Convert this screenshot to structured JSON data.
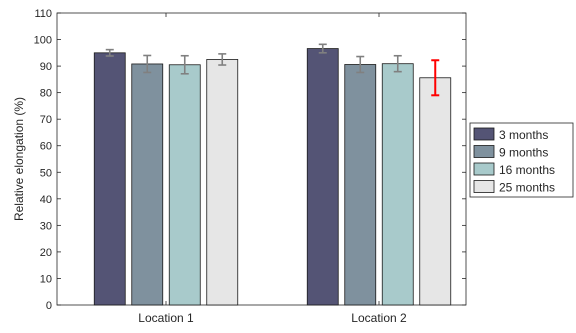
{
  "chart_data": {
    "type": "bar",
    "categories": [
      "Location 1",
      "Location 2"
    ],
    "ylabel": "Relative elongation (%)",
    "xlabel": "",
    "ylim": [
      0,
      110
    ],
    "yticks": [
      0,
      10,
      20,
      30,
      40,
      50,
      60,
      70,
      80,
      90,
      100,
      110
    ],
    "grid": false,
    "legend_position": "right",
    "series": [
      {
        "name": "3 months",
        "color": "#545475",
        "values": [
          95.0,
          96.6
        ],
        "errors": [
          1.2,
          1.6
        ]
      },
      {
        "name": "9 months",
        "color": "#7f919e",
        "values": [
          90.8,
          90.6
        ],
        "errors": [
          3.2,
          3.0
        ]
      },
      {
        "name": "16 months",
        "color": "#a8cacb",
        "values": [
          90.5,
          90.9
        ],
        "errors": [
          3.4,
          3.0
        ]
      },
      {
        "name": "25 months",
        "color": "#e6e6e6",
        "values": [
          92.5,
          85.6
        ],
        "errors": [
          2.1,
          6.6
        ]
      }
    ],
    "error_bar_colors": [
      [
        "#808080",
        "#808080"
      ],
      [
        "#808080",
        "#808080"
      ],
      [
        "#808080",
        "#808080"
      ],
      [
        "#808080",
        "#ff0000"
      ]
    ]
  }
}
